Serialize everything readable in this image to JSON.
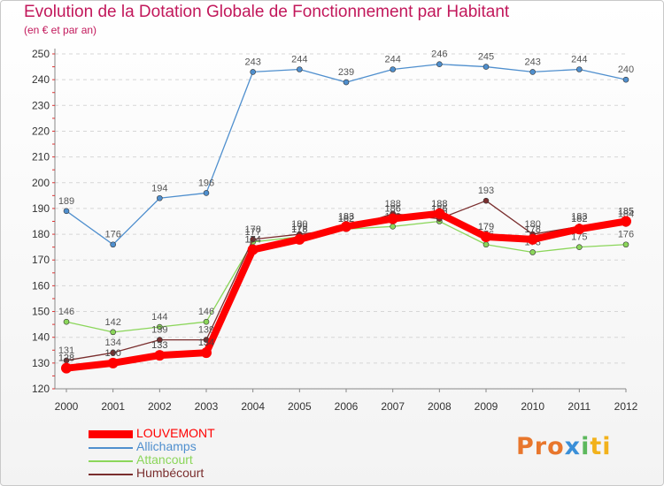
{
  "chart_data": {
    "type": "line",
    "title": "Evolution de la Dotation Globale de Fonctionnement par Habitant",
    "subtitle": "(en € et par an)",
    "xlabel": "",
    "ylabel": "",
    "ylim": [
      120,
      250
    ],
    "yticks": [
      120,
      130,
      140,
      150,
      160,
      170,
      180,
      190,
      200,
      210,
      220,
      230,
      240,
      250
    ],
    "categories": [
      "2000",
      "2001",
      "2002",
      "2003",
      "2004",
      "2005",
      "2006",
      "2007",
      "2008",
      "2009",
      "2010",
      "2011",
      "2012"
    ],
    "grid": "dashed horizontal",
    "legend_position": "bottom-left",
    "series": [
      {
        "name": "Allichamps",
        "color": "#4f8fce",
        "values": [
          189,
          176,
          194,
          196,
          243,
          244,
          239,
          244,
          246,
          245,
          243,
          244,
          240
        ]
      },
      {
        "name": "Attancourt",
        "color": "#8bd65a",
        "values": [
          146,
          142,
          144,
          146,
          177,
          179,
          182,
          183,
          185,
          176,
          173,
          175,
          176
        ]
      },
      {
        "name": "Humbécourt",
        "color": "#7a2e2e",
        "values": [
          131,
          134,
          139,
          139,
          178,
          180,
          182,
          188,
          186,
          193,
          180,
          183,
          184
        ]
      },
      {
        "name": "LOUVEMONT",
        "color": "#ff0000",
        "values": [
          128,
          130,
          133,
          134,
          174,
          178,
          183,
          186,
          188,
          179,
          178,
          182,
          185
        ]
      }
    ]
  },
  "legend": {
    "items": [
      {
        "label": "LOUVEMONT",
        "color": "#ff0000",
        "thickness": "thick"
      },
      {
        "label": "Allichamps",
        "color": "#4f8fce",
        "thickness": "thin"
      },
      {
        "label": "Attancourt",
        "color": "#8bd65a",
        "thickness": "thin"
      },
      {
        "label": "Humbécourt",
        "color": "#7a2e2e",
        "thickness": "thin"
      }
    ]
  },
  "logo": {
    "p1": "Pro",
    "p2": "x",
    "p3": "i",
    "p4": "ti"
  }
}
